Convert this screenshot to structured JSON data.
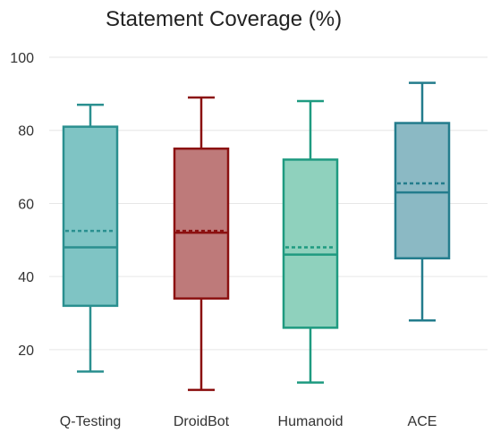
{
  "chart_data": {
    "type": "box",
    "title": "Statement Coverage (%)",
    "xlabel": "",
    "ylabel": "",
    "ylim": [
      7,
      100
    ],
    "yticks": [
      20,
      40,
      60,
      80,
      100
    ],
    "grid": true,
    "categories": [
      "Q-Testing",
      "DroidBot",
      "Humanoid",
      "ACE"
    ],
    "boxes": [
      {
        "category": "Q-Testing",
        "min": 14,
        "q1": 32,
        "median": 48,
        "mean": 52.5,
        "q3": 81,
        "max": 87,
        "stroke": "#2a8f8f",
        "fill": "#7fc4c4"
      },
      {
        "category": "DroidBot",
        "min": 9,
        "q1": 34,
        "median": 52,
        "mean": 52.5,
        "q3": 75,
        "max": 89,
        "stroke": "#8b1010",
        "fill": "#be7a7a"
      },
      {
        "category": "Humanoid",
        "min": 11,
        "q1": 26,
        "median": 46,
        "mean": 48,
        "q3": 72,
        "max": 88,
        "stroke": "#1e9a80",
        "fill": "#8fd1bd"
      },
      {
        "category": "ACE",
        "min": 28,
        "q1": 45,
        "median": 63,
        "mean": 65.5,
        "q3": 82,
        "max": 93,
        "stroke": "#237c8c",
        "fill": "#8bb9c4"
      }
    ]
  }
}
